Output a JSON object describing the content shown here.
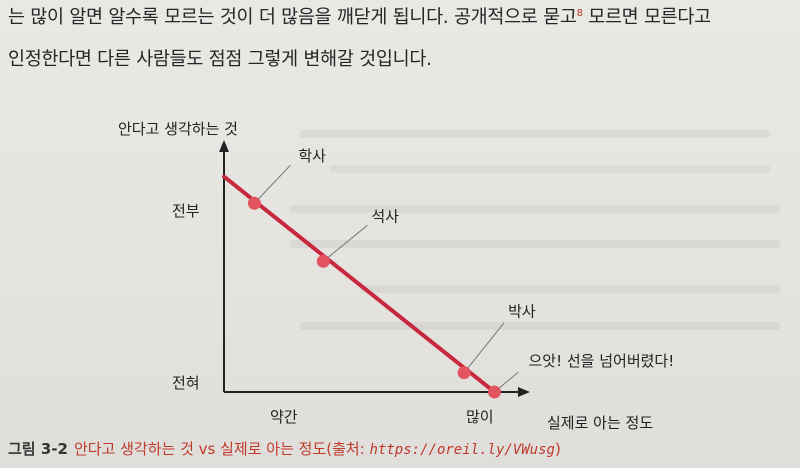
{
  "body_text": {
    "line1_before": "는 많이 알면 알수록 모르는 것이 더 많음을 깨닫게 됩니다. 공개적으로 묻고",
    "footnote_marker": "8",
    "line1_after": " 모르면 모른다고",
    "line2": "인정한다면 다른 사람들도 점점 그렇게 변해갈 것입니다."
  },
  "figure": {
    "number": "그림 3-2",
    "title": "안다고 생각하는 것 vs 실제로 아는 정도(출처: ",
    "url": "https://oreil.ly/VWusg",
    "title_end": ")"
  },
  "chart_data": {
    "type": "line",
    "ylabel": "안다고 생각하는 것",
    "xlabel": "실제로 아는 정도",
    "y_ticks": [
      "전부",
      "전혀"
    ],
    "x_ticks": [
      "약간",
      "많이"
    ],
    "series": [
      {
        "points": [
          {
            "x": 0.11,
            "y": 0.78,
            "label": "학사"
          },
          {
            "x": 0.36,
            "y": 0.54,
            "label": "석사"
          },
          {
            "x": 0.87,
            "y": 0.08,
            "label": "박사"
          },
          {
            "x": 0.98,
            "y": 0.0,
            "label": "으앗! 선을 넘어버렸다!"
          }
        ]
      }
    ],
    "line_start": {
      "x": 0.0,
      "y": 0.89
    },
    "colors": {
      "line": "#c8283d",
      "point": "#e25560",
      "axis": "#222222",
      "leader": "#777777"
    }
  }
}
